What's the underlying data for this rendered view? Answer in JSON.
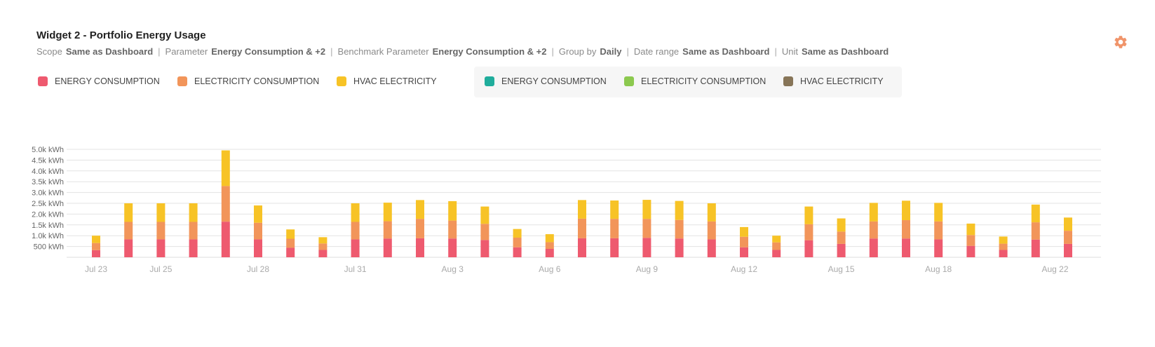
{
  "widget": {
    "title": "Widget 2 - Portfolio Energy Usage",
    "meta": [
      {
        "label": "Scope",
        "value": "Same as Dashboard"
      },
      {
        "label": "Parameter",
        "value": "Energy Consumption & +2"
      },
      {
        "label": "Benchmark Parameter",
        "value": "Energy Consumption & +2"
      },
      {
        "label": "Group by",
        "value": "Daily"
      },
      {
        "label": "Date range",
        "value": "Same as Dashboard"
      },
      {
        "label": "Unit",
        "value": "Same as Dashboard"
      }
    ],
    "settings_icon": "gear-icon",
    "accent_color": "#f0946a"
  },
  "legend": {
    "primary": [
      {
        "label": "ENERGY CONSUMPTION",
        "color": "#ee5a6f"
      },
      {
        "label": "ELECTRICITY CONSUMPTION",
        "color": "#f2955a"
      },
      {
        "label": "HVAC ELECTRICITY",
        "color": "#f7c326"
      }
    ],
    "benchmark": [
      {
        "label": "ENERGY CONSUMPTION",
        "color": "#20ad9c"
      },
      {
        "label": "ELECTRICITY CONSUMPTION",
        "color": "#8cc94f"
      },
      {
        "label": "HVAC ELECTRICITY",
        "color": "#877558"
      }
    ]
  },
  "chart_data": {
    "type": "bar",
    "stacked": true,
    "y_tick_labels": [
      "500 kWh",
      "1.0k kWh",
      "1.5k kWh",
      "2.0k kWh",
      "2.5k kWh",
      "3.0k kWh",
      "3.5k kWh",
      "4.0k kWh",
      "4.5k kWh",
      "5.0k kWh"
    ],
    "y_ticks": [
      500,
      1000,
      1500,
      2000,
      2500,
      3000,
      3500,
      4000,
      4500,
      5000
    ],
    "ylim": [
      0,
      5000
    ],
    "grid": true,
    "x_tick_labels": [
      "Jul 23",
      "Jul 25",
      "Jul 28",
      "Jul 31",
      "Aug 3",
      "Aug 6",
      "Aug 9",
      "Aug 12",
      "Aug 15",
      "Aug 18",
      "Aug 22"
    ],
    "x_tick_days": [
      0,
      2,
      5,
      8,
      11,
      14,
      17,
      20,
      23,
      26,
      29.6
    ],
    "x_days": [
      0,
      1,
      2,
      3,
      4,
      5,
      6,
      7,
      8,
      9,
      10,
      11,
      12,
      13,
      14,
      15,
      16,
      17,
      18,
      19,
      20,
      21,
      22,
      23,
      24,
      25,
      26,
      27,
      28,
      29,
      30
    ],
    "series": [
      {
        "name": "ENERGY CONSUMPTION",
        "color": "#ee5a6f",
        "values": [
          330,
          830,
          830,
          830,
          1650,
          830,
          440,
          340,
          830,
          870,
          880,
          870,
          800,
          460,
          390,
          880,
          880,
          900,
          870,
          830,
          460,
          340,
          790,
          620,
          870,
          870,
          830,
          530,
          340,
          820,
          620
        ]
      },
      {
        "name": "ELECTRICITY CONSUMPTION",
        "color": "#f2955a",
        "values": [
          330,
          810,
          810,
          810,
          1650,
          770,
          420,
          300,
          810,
          800,
          900,
          830,
          750,
          450,
          310,
          910,
          900,
          880,
          860,
          830,
          490,
          350,
          740,
          570,
          790,
          850,
          830,
          500,
          290,
          800,
          610
        ]
      },
      {
        "name": "HVAC ELECTRICITY",
        "color": "#f7c326",
        "values": [
          340,
          860,
          860,
          860,
          1650,
          800,
          430,
          290,
          860,
          860,
          870,
          900,
          800,
          400,
          370,
          860,
          850,
          880,
          880,
          840,
          450,
          310,
          820,
          610,
          860,
          900,
          860,
          530,
          330,
          820,
          610
        ]
      }
    ]
  }
}
